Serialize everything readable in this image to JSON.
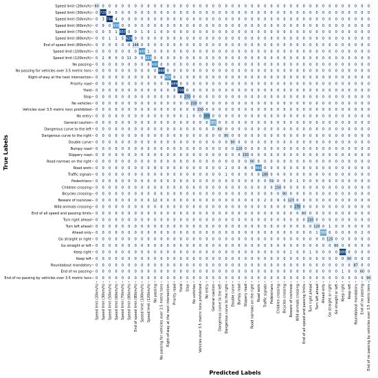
{
  "chart_data": {
    "type": "heatmap",
    "title": "",
    "xlabel": "Predicted Labels",
    "ylabel": "True Labels",
    "labels": [
      "Speed limit (20km/h)",
      "Speed limit (30km/h)",
      "Speed limit (50km/h)",
      "Speed limit (60km/h)",
      "Speed limit (70km/h)",
      "Speed limit (80km/h)",
      "End of speed limit (80km/h)",
      "Speed limit (100km/h)",
      "Speed limit (120km/h)",
      "No passing",
      "No passing for vehicles over 3.5 metric tons",
      "Right-of-way at the next intersection",
      "Priority road",
      "Yield",
      "Stop",
      "No vehicles",
      "Vehicles over 3.5 metric tons prohibited",
      "No entry",
      "General caution",
      "Dangerous curve to the left",
      "Dangerous curve to the right",
      "Double curve",
      "Bumpy road",
      "Slippery road",
      "Road narrows on the right",
      "Road work",
      "Traffic signals",
      "Pedestrians",
      "Children crossing",
      "Bicycles crossing",
      "Beware of ice/snow",
      "Wild animals crossing",
      "End of all speed and passing limits",
      "Turn right ahead",
      "Turn left ahead",
      "Ahead only",
      "Go straight or right",
      "Go straight or left",
      "Keep right",
      "Keep left",
      "Roundabout mandatory",
      "End of no passing",
      "End of no passing by vehicles over 3.5 metric tons"
    ],
    "diagonal": [
      60,
      720,
      744,
      430,
      657,
      629,
      144,
      449,
      429,
      480,
      668,
      420,
      689,
      720,
      270,
      210,
      150,
      359,
      381,
      60,
      90,
      90,
      120,
      150,
      90,
      466,
      180,
      59,
      150,
      90,
      123,
      270,
      60,
      210,
      120,
      388,
      120,
      60,
      689,
      90,
      87,
      60,
      90
    ],
    "off_diagonal": [
      [
        2,
        1,
        3
      ],
      [
        2,
        3,
        4
      ],
      [
        3,
        1,
        9
      ],
      [
        4,
        2,
        3
      ],
      [
        4,
        3,
        1
      ],
      [
        4,
        7,
        1
      ],
      [
        4,
        9,
        1
      ],
      [
        5,
        2,
        1
      ],
      [
        5,
        3,
        1
      ],
      [
        5,
        4,
        5
      ],
      [
        7,
        8,
        1
      ],
      [
        8,
        1,
        2
      ],
      [
        8,
        2,
        8
      ],
      [
        8,
        5,
        11
      ],
      [
        11,
        13,
        1
      ],
      [
        17,
        14,
        1
      ],
      [
        25,
        9,
        9
      ],
      [
        25,
        20,
        2
      ],
      [
        25,
        23,
        8
      ],
      [
        26,
        20,
        1
      ],
      [
        27,
        31,
        1
      ],
      [
        30,
        9,
        12
      ],
      [
        30,
        26,
        2
      ],
      [
        30,
        28,
        9
      ],
      [
        34,
        36,
        1
      ],
      [
        35,
        34,
        1
      ],
      [
        35,
        41,
        2
      ],
      [
        38,
        30,
        2
      ],
      [
        38,
        33,
        1
      ],
      [
        41,
        38,
        1
      ]
    ],
    "vmax": 744
  }
}
